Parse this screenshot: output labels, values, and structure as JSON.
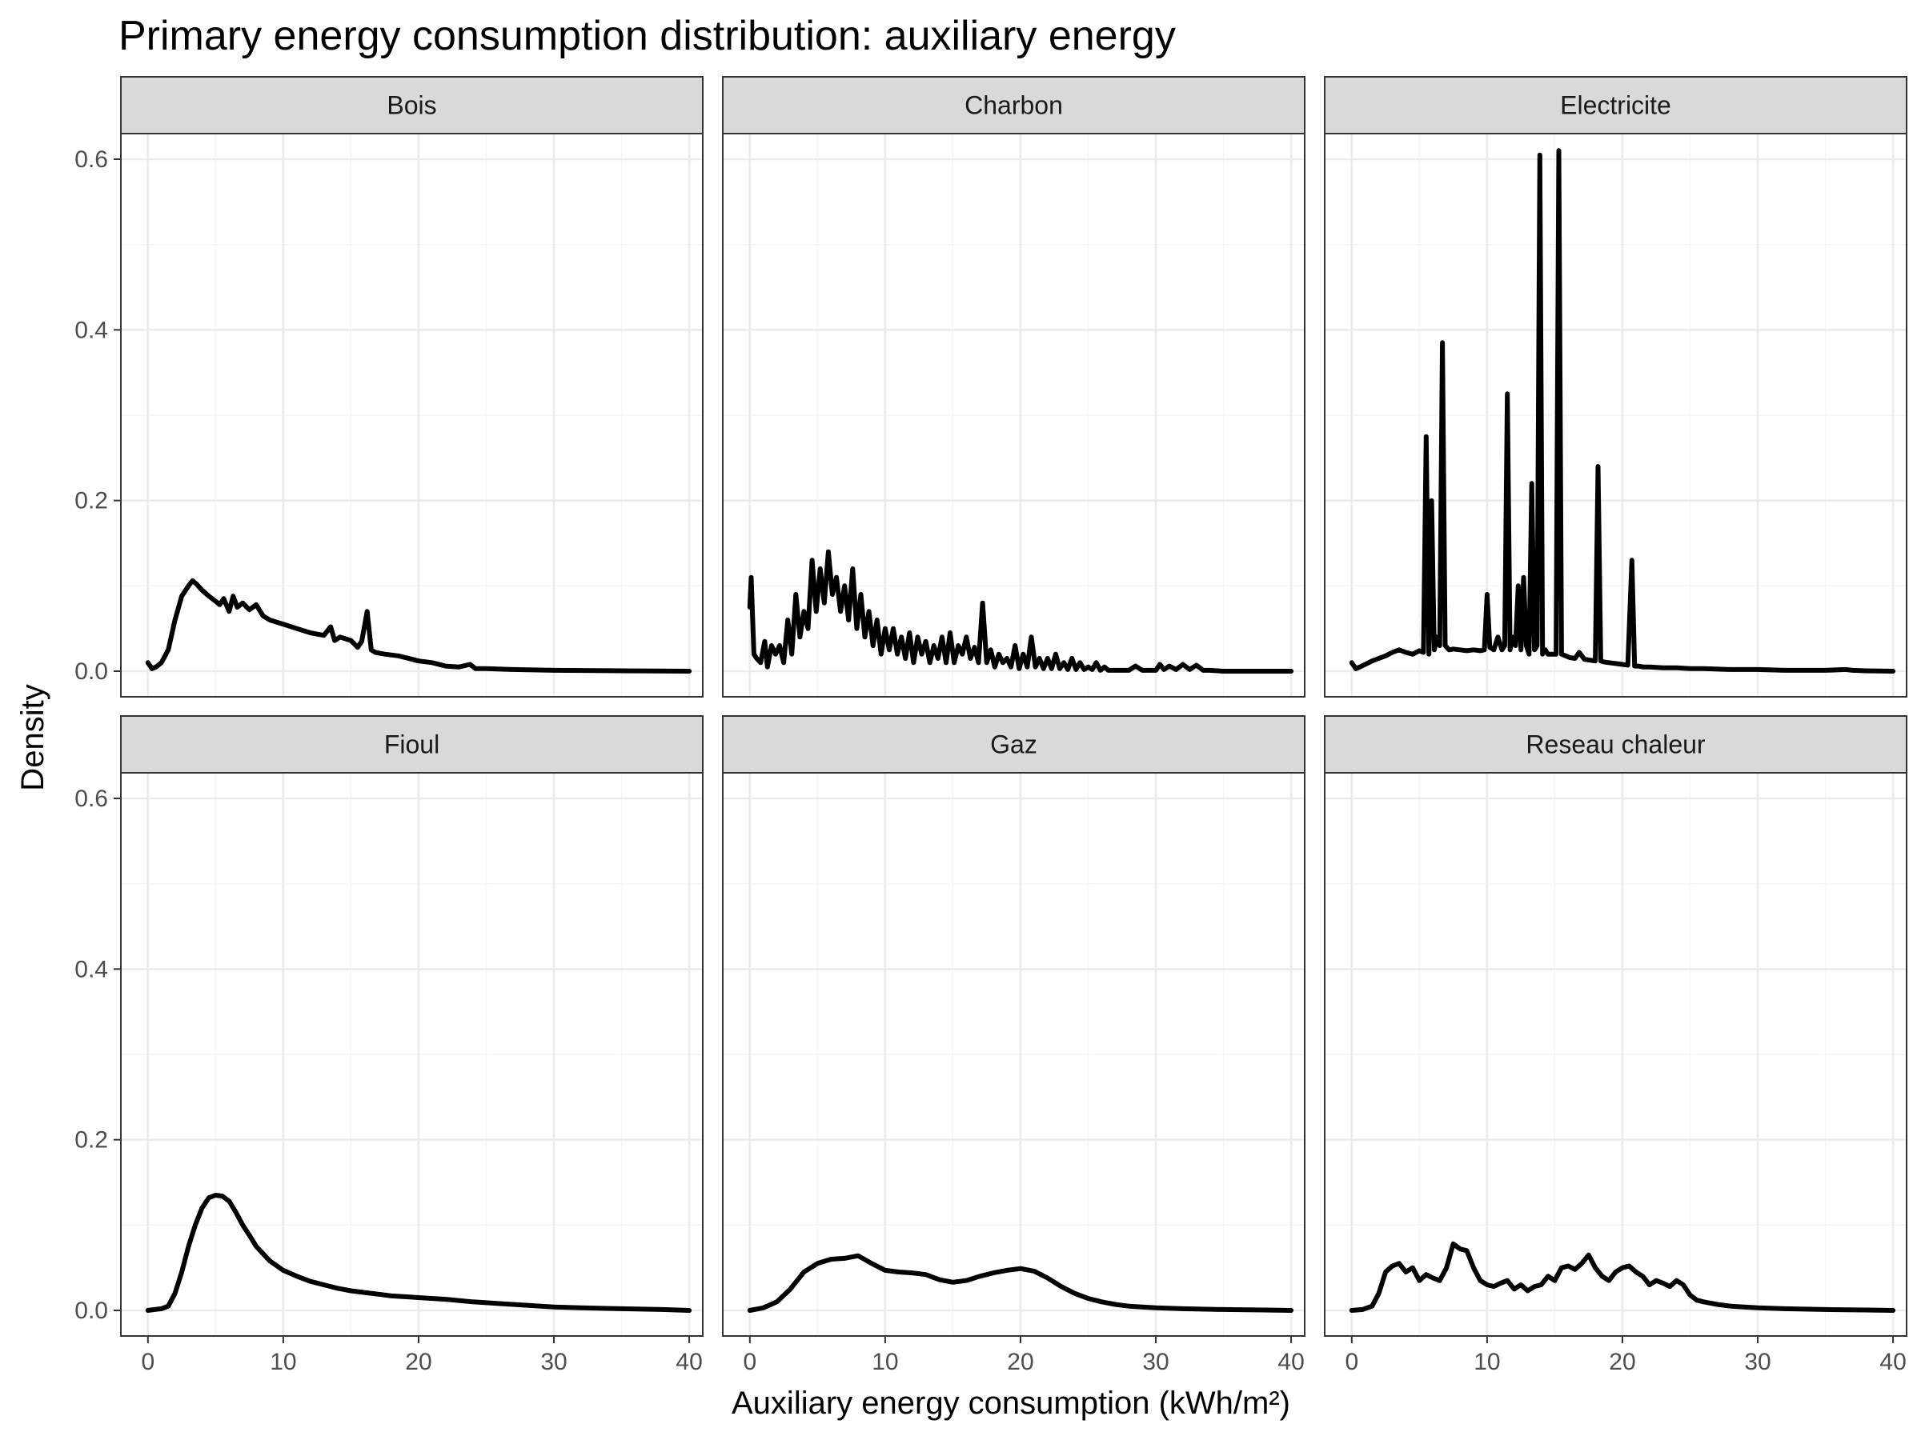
{
  "chart_data": {
    "type": "line",
    "title": "Primary energy consumption distribution: auxiliary energy",
    "xlabel": "Auxiliary energy consumption (kWh/m²)",
    "ylabel": "Density",
    "xlim": [
      -2,
      41
    ],
    "ylim": [
      -0.03,
      0.63
    ],
    "xticks": [
      0,
      10,
      20,
      30,
      40
    ],
    "yticks": [
      0.0,
      0.2,
      0.4,
      0.6
    ],
    "ytick_labels": [
      "0.0",
      "0.2",
      "0.4",
      "0.6"
    ],
    "grid": true,
    "panels": [
      {
        "name": "Bois",
        "x": [
          0,
          0.3,
          0.6,
          1,
          1.5,
          2,
          2.5,
          3,
          3.3,
          3.6,
          4,
          4.5,
          5,
          5.3,
          5.6,
          6,
          6.3,
          6.6,
          7,
          7.5,
          8,
          8.5,
          9,
          10,
          11,
          12,
          13,
          13.5,
          13.8,
          14.2,
          15,
          15.5,
          15.8,
          16.2,
          16.5,
          16.8,
          17.5,
          18.5,
          19,
          20,
          21,
          22,
          23,
          23.8,
          24.2,
          25,
          27,
          30,
          35,
          40
        ],
        "y": [
          0.01,
          0.003,
          0.005,
          0.01,
          0.025,
          0.06,
          0.088,
          0.1,
          0.106,
          0.102,
          0.095,
          0.088,
          0.082,
          0.078,
          0.085,
          0.07,
          0.088,
          0.075,
          0.08,
          0.072,
          0.078,
          0.065,
          0.06,
          0.055,
          0.05,
          0.045,
          0.042,
          0.052,
          0.036,
          0.04,
          0.036,
          0.028,
          0.035,
          0.07,
          0.025,
          0.022,
          0.02,
          0.018,
          0.016,
          0.012,
          0.01,
          0.006,
          0.005,
          0.008,
          0.003,
          0.003,
          0.002,
          0.001,
          0.0005,
          0.0
        ]
      },
      {
        "name": "Charbon",
        "x": [
          0,
          0.1,
          0.3,
          0.5,
          0.8,
          1.1,
          1.3,
          1.6,
          1.9,
          2.2,
          2.5,
          2.8,
          3.1,
          3.4,
          3.7,
          4,
          4.3,
          4.6,
          4.9,
          5.2,
          5.5,
          5.8,
          6.1,
          6.4,
          6.7,
          7,
          7.3,
          7.6,
          7.9,
          8.2,
          8.5,
          8.8,
          9.1,
          9.4,
          9.7,
          10,
          10.3,
          10.6,
          10.9,
          11.2,
          11.5,
          11.8,
          12.1,
          12.4,
          12.7,
          13,
          13.3,
          13.6,
          13.9,
          14.2,
          14.5,
          14.8,
          15.1,
          15.4,
          15.7,
          16,
          16.3,
          16.6,
          16.9,
          17.2,
          17.5,
          17.8,
          18.1,
          18.4,
          18.7,
          19,
          19.3,
          19.6,
          19.9,
          20.2,
          20.5,
          20.8,
          21.1,
          21.4,
          21.7,
          22,
          22.3,
          22.6,
          22.9,
          23.2,
          23.5,
          23.8,
          24.1,
          24.4,
          24.7,
          25,
          25.3,
          25.6,
          25.9,
          26.2,
          26.5,
          27,
          28,
          28.5,
          29,
          30,
          30.3,
          30.6,
          31,
          31.5,
          32,
          32.5,
          33,
          33.5,
          34,
          35,
          40
        ],
        "y": [
          0.075,
          0.11,
          0.02,
          0.015,
          0.01,
          0.035,
          0.005,
          0.03,
          0.02,
          0.03,
          0.01,
          0.06,
          0.02,
          0.09,
          0.04,
          0.07,
          0.05,
          0.13,
          0.07,
          0.12,
          0.08,
          0.14,
          0.09,
          0.11,
          0.07,
          0.1,
          0.06,
          0.12,
          0.05,
          0.09,
          0.04,
          0.07,
          0.03,
          0.06,
          0.02,
          0.05,
          0.025,
          0.05,
          0.02,
          0.04,
          0.015,
          0.045,
          0.01,
          0.04,
          0.02,
          0.035,
          0.01,
          0.03,
          0.015,
          0.04,
          0.01,
          0.045,
          0.01,
          0.03,
          0.02,
          0.04,
          0.015,
          0.028,
          0.01,
          0.08,
          0.01,
          0.025,
          0.005,
          0.02,
          0.01,
          0.015,
          0.005,
          0.03,
          0.003,
          0.02,
          0.005,
          0.04,
          0.005,
          0.015,
          0.003,
          0.015,
          0.003,
          0.02,
          0.003,
          0.01,
          0.002,
          0.015,
          0.002,
          0.01,
          0.002,
          0.005,
          0.002,
          0.01,
          0.001,
          0.005,
          0.001,
          0.001,
          0.001,
          0.006,
          0.001,
          0.001,
          0.008,
          0.002,
          0.006,
          0.002,
          0.008,
          0.002,
          0.007,
          0.001,
          0.001,
          0.0,
          0.0
        ]
      },
      {
        "name": "Electricite",
        "x": [
          0,
          0.3,
          0.6,
          1,
          1.5,
          2,
          2.5,
          3,
          3.5,
          4,
          4.5,
          5,
          5.3,
          5.5,
          5.7,
          5.9,
          6.1,
          6.3,
          6.5,
          6.7,
          6.9,
          7.2,
          7.5,
          8,
          8.5,
          9,
          9.5,
          9.8,
          10,
          10.2,
          10.5,
          10.8,
          11.1,
          11.3,
          11.5,
          11.7,
          11.9,
          12.1,
          12.3,
          12.5,
          12.7,
          12.9,
          13.1,
          13.3,
          13.5,
          13.7,
          13.9,
          14.1,
          14.3,
          14.5,
          14.7,
          14.9,
          15.1,
          15.3,
          15.5,
          15.8,
          16.1,
          16.5,
          16.8,
          17.2,
          17.6,
          18,
          18.2,
          18.4,
          18.6,
          19,
          19.5,
          20,
          20.4,
          20.7,
          20.9,
          21.2,
          21.5,
          22,
          23,
          24,
          25,
          26,
          28,
          30,
          32,
          35,
          36.5,
          37,
          38,
          40
        ],
        "y": [
          0.01,
          0.003,
          0.005,
          0.008,
          0.012,
          0.015,
          0.018,
          0.022,
          0.025,
          0.022,
          0.02,
          0.024,
          0.022,
          0.275,
          0.02,
          0.2,
          0.025,
          0.04,
          0.03,
          0.385,
          0.03,
          0.025,
          0.026,
          0.025,
          0.024,
          0.025,
          0.024,
          0.025,
          0.09,
          0.028,
          0.025,
          0.04,
          0.025,
          0.03,
          0.325,
          0.025,
          0.04,
          0.03,
          0.1,
          0.025,
          0.11,
          0.03,
          0.02,
          0.22,
          0.025,
          0.03,
          0.605,
          0.02,
          0.025,
          0.02,
          0.02,
          0.02,
          0.02,
          0.61,
          0.02,
          0.018,
          0.016,
          0.015,
          0.022,
          0.014,
          0.013,
          0.012,
          0.24,
          0.012,
          0.011,
          0.01,
          0.009,
          0.008,
          0.007,
          0.13,
          0.006,
          0.006,
          0.005,
          0.005,
          0.004,
          0.004,
          0.003,
          0.003,
          0.002,
          0.002,
          0.001,
          0.001,
          0.002,
          0.001,
          0.0005,
          0.0
        ]
      },
      {
        "name": "Fioul",
        "x": [
          0,
          0.5,
          1,
          1.5,
          2,
          2.5,
          3,
          3.5,
          4,
          4.5,
          5,
          5.5,
          6,
          6.5,
          7,
          7.5,
          8,
          9,
          10,
          11,
          12,
          13,
          14,
          15,
          16,
          17,
          18,
          19,
          20,
          22,
          24,
          26,
          28,
          30,
          32,
          35,
          38,
          40
        ],
        "y": [
          0.0,
          0.001,
          0.002,
          0.005,
          0.02,
          0.045,
          0.075,
          0.1,
          0.12,
          0.132,
          0.135,
          0.134,
          0.128,
          0.115,
          0.1,
          0.088,
          0.075,
          0.058,
          0.047,
          0.04,
          0.034,
          0.03,
          0.026,
          0.023,
          0.021,
          0.019,
          0.017,
          0.016,
          0.015,
          0.013,
          0.01,
          0.008,
          0.006,
          0.004,
          0.003,
          0.002,
          0.001,
          0.0
        ]
      },
      {
        "name": "Gaz",
        "x": [
          0,
          1,
          2,
          3,
          4,
          5,
          6,
          7,
          8,
          9,
          10,
          11,
          12,
          13,
          14,
          15,
          16,
          17,
          18,
          19,
          20,
          21,
          22,
          23,
          24,
          25,
          26,
          27,
          28,
          30,
          32,
          35,
          38,
          40
        ],
        "y": [
          0.0,
          0.003,
          0.01,
          0.025,
          0.045,
          0.055,
          0.06,
          0.061,
          0.064,
          0.055,
          0.047,
          0.045,
          0.044,
          0.042,
          0.036,
          0.033,
          0.035,
          0.04,
          0.044,
          0.047,
          0.049,
          0.046,
          0.038,
          0.028,
          0.02,
          0.014,
          0.01,
          0.007,
          0.005,
          0.003,
          0.002,
          0.001,
          0.0005,
          0.0
        ]
      },
      {
        "name": "Reseau chaleur",
        "x": [
          0,
          0.8,
          1.5,
          2,
          2.5,
          3,
          3.5,
          4,
          4.5,
          5,
          5.5,
          6,
          6.5,
          7,
          7.5,
          8,
          8.5,
          9,
          9.5,
          10,
          10.5,
          11,
          11.5,
          12,
          12.5,
          13,
          13.5,
          14,
          14.5,
          15,
          15.5,
          16,
          16.5,
          17,
          17.5,
          18,
          18.5,
          19,
          19.5,
          20,
          20.5,
          21,
          21.5,
          22,
          22.5,
          23,
          23.5,
          24,
          24.5,
          25,
          25.5,
          26,
          27,
          28,
          30,
          32,
          35,
          38,
          40
        ],
        "y": [
          0.0,
          0.001,
          0.005,
          0.02,
          0.045,
          0.052,
          0.055,
          0.045,
          0.05,
          0.035,
          0.042,
          0.038,
          0.035,
          0.05,
          0.078,
          0.072,
          0.07,
          0.05,
          0.035,
          0.03,
          0.028,
          0.032,
          0.035,
          0.025,
          0.03,
          0.023,
          0.028,
          0.03,
          0.04,
          0.035,
          0.05,
          0.052,
          0.048,
          0.055,
          0.065,
          0.05,
          0.04,
          0.035,
          0.045,
          0.05,
          0.052,
          0.045,
          0.04,
          0.03,
          0.035,
          0.032,
          0.028,
          0.035,
          0.03,
          0.018,
          0.012,
          0.01,
          0.007,
          0.005,
          0.003,
          0.002,
          0.001,
          0.0005,
          0.0
        ]
      }
    ]
  }
}
